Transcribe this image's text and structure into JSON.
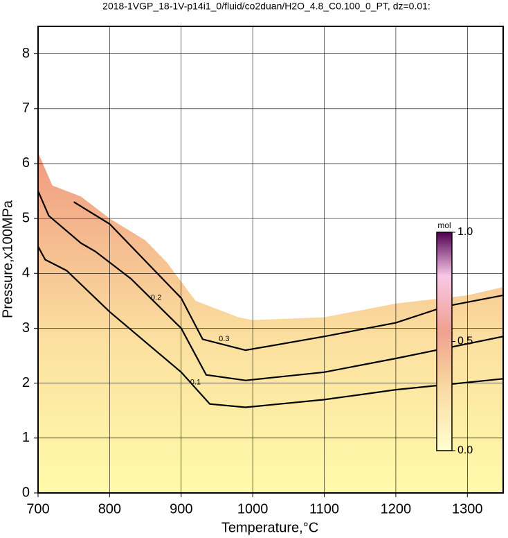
{
  "chart_data": {
    "type": "contour",
    "title": "2018-1VGP_18-1V-p14i1_0/fluid/co2duan/H2O_4.8_C0.100_0_PT, dz=0.01:",
    "x_label": "Temperature,°C",
    "y_label": "Pressure,x100MPa",
    "xlim": [
      700,
      1350
    ],
    "ylim": [
      0,
      8.5
    ],
    "xticks": [
      700,
      800,
      900,
      1000,
      1100,
      1200,
      1300
    ],
    "yticks": [
      0,
      1,
      2,
      3,
      4,
      5,
      6,
      7,
      8
    ],
    "grid": true,
    "field_boundary": {
      "x": [
        700,
        720,
        760,
        800,
        850,
        880,
        920,
        980,
        1000,
        1100,
        1200,
        1300,
        1350
      ],
      "y": [
        6.2,
        5.6,
        5.4,
        5.0,
        4.6,
        4.2,
        3.5,
        3.2,
        3.15,
        3.2,
        3.45,
        3.6,
        3.75
      ]
    },
    "contours": [
      {
        "level": 0.1,
        "x": [
          700,
          710,
          740,
          800,
          900,
          940,
          990,
          1100,
          1200,
          1350
        ],
        "y": [
          4.49,
          4.25,
          4.05,
          3.3,
          2.2,
          1.62,
          1.56,
          1.7,
          1.88,
          2.08
        ]
      },
      {
        "level": 0.2,
        "x": [
          700,
          715,
          760,
          780,
          830,
          900,
          935,
          990,
          1100,
          1200,
          1350
        ],
        "y": [
          5.5,
          5.05,
          4.55,
          4.4,
          3.9,
          3.0,
          2.15,
          2.05,
          2.2,
          2.45,
          2.85
        ]
      },
      {
        "level": 0.3,
        "x": [
          750,
          800,
          900,
          930,
          990,
          1100,
          1200,
          1270,
          1350
        ],
        "y": [
          5.3,
          4.9,
          3.55,
          2.8,
          2.6,
          2.85,
          3.1,
          3.4,
          3.6
        ]
      }
    ],
    "colorbar": {
      "label": "mol",
      "lim": [
        0,
        1
      ],
      "ticks": [
        {
          "value": 0,
          "label": "0.0"
        },
        0.5,
        {
          "value": 1,
          "label": "1.0"
        }
      ]
    }
  }
}
